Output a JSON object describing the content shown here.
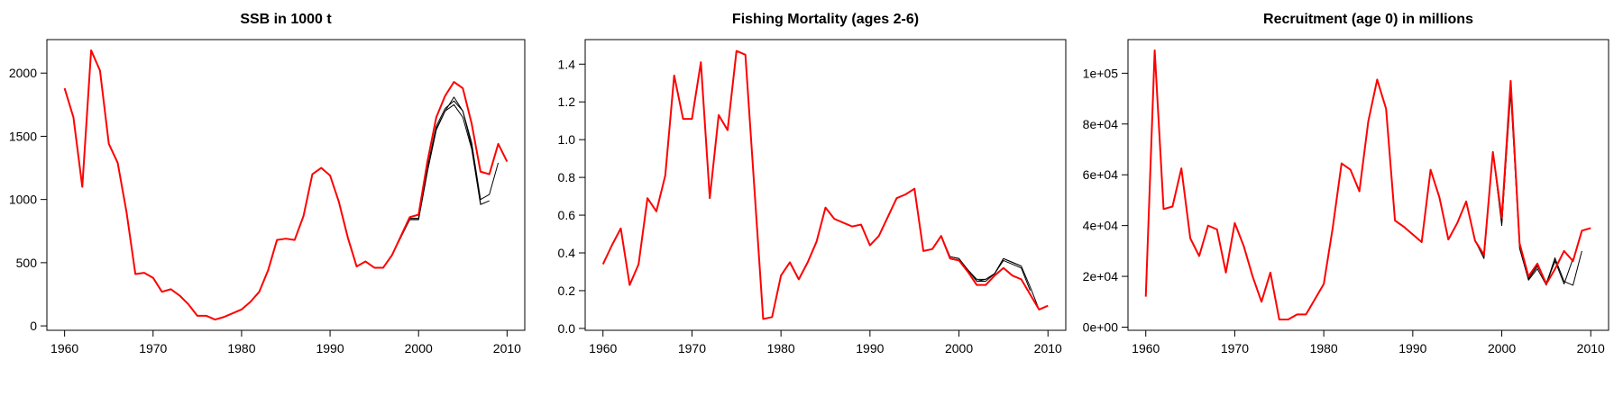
{
  "chart_data": [
    {
      "type": "line",
      "title": "SSB in 1000 t",
      "x": [
        1960,
        1961,
        1962,
        1963,
        1964,
        1965,
        1966,
        1967,
        1968,
        1969,
        1970,
        1971,
        1972,
        1973,
        1974,
        1975,
        1976,
        1977,
        1978,
        1979,
        1980,
        1981,
        1982,
        1983,
        1984,
        1985,
        1986,
        1987,
        1988,
        1989,
        1990,
        1991,
        1992,
        1993,
        1994,
        1995,
        1996,
        1997,
        1998,
        1999,
        2000,
        2001,
        2002,
        2003,
        2004,
        2005,
        2006,
        2007,
        2008,
        2009,
        2010
      ],
      "xlim": [
        1958,
        2012
      ],
      "xticks": [
        1960,
        1970,
        1980,
        1990,
        2000,
        2010
      ],
      "ylim": [
        -35,
        2265
      ],
      "yticks": [
        0,
        500,
        1000,
        1500,
        2000
      ],
      "series": [
        {
          "color": "#000000",
          "values": [
            null,
            null,
            null,
            null,
            null,
            null,
            null,
            null,
            null,
            null,
            null,
            null,
            null,
            null,
            null,
            null,
            null,
            null,
            null,
            null,
            null,
            null,
            null,
            null,
            null,
            null,
            null,
            null,
            null,
            null,
            null,
            null,
            null,
            null,
            null,
            null,
            460,
            560,
            700,
            840,
            840,
            1220,
            1550,
            1700,
            1750,
            1650,
            1400,
            960,
            990,
            null,
            null
          ]
        },
        {
          "color": "#000000",
          "values": [
            null,
            null,
            null,
            null,
            null,
            null,
            null,
            null,
            null,
            null,
            null,
            null,
            null,
            null,
            null,
            null,
            null,
            null,
            null,
            null,
            null,
            null,
            null,
            null,
            null,
            null,
            null,
            null,
            null,
            null,
            null,
            null,
            null,
            null,
            null,
            null,
            460,
            560,
            700,
            850,
            850,
            1240,
            1560,
            1700,
            1810,
            1700,
            1420,
            970,
            null,
            null,
            null
          ]
        },
        {
          "color": "#000000",
          "values": [
            null,
            null,
            null,
            null,
            null,
            null,
            null,
            null,
            null,
            null,
            null,
            null,
            null,
            null,
            null,
            null,
            null,
            null,
            null,
            null,
            null,
            null,
            null,
            null,
            null,
            null,
            null,
            null,
            null,
            null,
            null,
            null,
            null,
            null,
            null,
            null,
            460,
            560,
            710,
            850,
            850,
            1250,
            1580,
            1720,
            1780,
            1700,
            1450,
            1000,
            1040,
            1290,
            null
          ]
        },
        {
          "color": "#ff0000",
          "values": [
            1880,
            1650,
            1100,
            2180,
            2020,
            1440,
            1290,
            900,
            410,
            420,
            380,
            270,
            290,
            240,
            170,
            80,
            80,
            50,
            70,
            100,
            130,
            190,
            270,
            440,
            680,
            690,
            680,
            870,
            1200,
            1250,
            1190,
            980,
            700,
            470,
            510,
            460,
            460,
            560,
            710,
            860,
            880,
            1300,
            1650,
            1820,
            1930,
            1880,
            1600,
            1220,
            1200,
            1440,
            1300
          ]
        }
      ]
    },
    {
      "type": "line",
      "title": "Fishing Mortality (ages 2-6)",
      "x": [
        1960,
        1961,
        1962,
        1963,
        1964,
        1965,
        1966,
        1967,
        1968,
        1969,
        1970,
        1971,
        1972,
        1973,
        1974,
        1975,
        1976,
        1977,
        1978,
        1979,
        1980,
        1981,
        1982,
        1983,
        1984,
        1985,
        1986,
        1987,
        1988,
        1989,
        1990,
        1991,
        1992,
        1993,
        1994,
        1995,
        1996,
        1997,
        1998,
        1999,
        2000,
        2001,
        2002,
        2003,
        2004,
        2005,
        2006,
        2007,
        2008,
        2009,
        2010
      ],
      "xlim": [
        1958,
        2012
      ],
      "xticks": [
        1960,
        1970,
        1980,
        1990,
        2000,
        2010
      ],
      "ylim": [
        -0.01,
        1.53
      ],
      "yticks": [
        {
          "value": 0,
          "label": "0.0"
        },
        0.2,
        0.4,
        0.6,
        0.8,
        {
          "value": 1,
          "label": "1.0"
        },
        1.2,
        1.4
      ],
      "series": [
        {
          "color": "#000000",
          "values": [
            null,
            null,
            null,
            null,
            null,
            null,
            null,
            null,
            null,
            null,
            null,
            null,
            null,
            null,
            null,
            null,
            null,
            null,
            null,
            null,
            null,
            null,
            null,
            null,
            null,
            null,
            null,
            null,
            null,
            null,
            null,
            null,
            null,
            null,
            null,
            null,
            0.41,
            0.42,
            0.49,
            0.38,
            0.37,
            0.31,
            0.25,
            0.26,
            0.29,
            0.37,
            0.35,
            0.33,
            null,
            null,
            null
          ]
        },
        {
          "color": "#000000",
          "values": [
            null,
            null,
            null,
            null,
            null,
            null,
            null,
            null,
            null,
            null,
            null,
            null,
            null,
            null,
            null,
            null,
            null,
            null,
            null,
            null,
            null,
            null,
            null,
            null,
            null,
            null,
            null,
            null,
            null,
            null,
            null,
            null,
            null,
            null,
            null,
            null,
            0.41,
            0.42,
            0.49,
            0.37,
            0.36,
            0.31,
            0.25,
            0.25,
            0.29,
            0.36,
            0.34,
            0.32,
            0.2,
            null,
            null
          ]
        },
        {
          "color": "#000000",
          "values": [
            null,
            null,
            null,
            null,
            null,
            null,
            null,
            null,
            null,
            null,
            null,
            null,
            null,
            null,
            null,
            null,
            null,
            null,
            null,
            null,
            null,
            null,
            null,
            null,
            null,
            null,
            null,
            null,
            null,
            null,
            null,
            null,
            null,
            null,
            null,
            null,
            0.41,
            0.42,
            0.49,
            0.38,
            0.37,
            0.31,
            0.26,
            0.26,
            0.29,
            0.37,
            0.35,
            0.33,
            0.22,
            0.1,
            null
          ]
        },
        {
          "color": "#ff0000",
          "values": [
            0.34,
            0.44,
            0.53,
            0.23,
            0.34,
            0.69,
            0.62,
            0.81,
            1.34,
            1.11,
            1.11,
            1.41,
            0.69,
            1.13,
            1.05,
            1.47,
            1.45,
            0.75,
            0.05,
            0.06,
            0.28,
            0.35,
            0.26,
            0.35,
            0.46,
            0.64,
            0.58,
            0.56,
            0.54,
            0.55,
            0.44,
            0.49,
            0.59,
            0.69,
            0.71,
            0.74,
            0.41,
            0.42,
            0.49,
            0.37,
            0.36,
            0.3,
            0.23,
            0.23,
            0.28,
            0.32,
            0.28,
            0.26,
            0.18,
            0.1,
            0.12
          ]
        }
      ]
    },
    {
      "type": "line",
      "title": "Recruitment (age 0) in millions",
      "x": [
        1960,
        1961,
        1962,
        1963,
        1964,
        1965,
        1966,
        1967,
        1968,
        1969,
        1970,
        1971,
        1972,
        1973,
        1974,
        1975,
        1976,
        1977,
        1978,
        1979,
        1980,
        1981,
        1982,
        1983,
        1984,
        1985,
        1986,
        1987,
        1988,
        1989,
        1990,
        1991,
        1992,
        1993,
        1994,
        1995,
        1996,
        1997,
        1998,
        1999,
        2000,
        2001,
        2002,
        2003,
        2004,
        2005,
        2006,
        2007,
        2008,
        2009,
        2010
      ],
      "xlim": [
        1958,
        2012
      ],
      "xticks": [
        1960,
        1970,
        1980,
        1990,
        2000,
        2010
      ],
      "ylim": [
        -1240,
        113240
      ],
      "yticks": [
        {
          "value": 0,
          "label": "0e+00"
        },
        {
          "value": 20000,
          "label": "2e+04"
        },
        {
          "value": 40000,
          "label": "4e+04"
        },
        {
          "value": 60000,
          "label": "6e+04"
        },
        {
          "value": 80000,
          "label": "8e+04"
        },
        {
          "value": 100000,
          "label": "1e+05"
        }
      ],
      "series": [
        {
          "color": "#000000",
          "values": [
            null,
            null,
            null,
            null,
            null,
            null,
            null,
            null,
            null,
            null,
            null,
            null,
            null,
            null,
            null,
            null,
            null,
            null,
            null,
            null,
            null,
            null,
            null,
            null,
            null,
            null,
            null,
            null,
            null,
            null,
            null,
            null,
            null,
            null,
            null,
            null,
            49500,
            34000,
            27000,
            69000,
            41000,
            92000,
            32000,
            19000,
            24000,
            17500,
            26000,
            17000,
            27000,
            null,
            null
          ]
        },
        {
          "color": "#000000",
          "values": [
            null,
            null,
            null,
            null,
            null,
            null,
            null,
            null,
            null,
            null,
            null,
            null,
            null,
            null,
            null,
            null,
            null,
            null,
            null,
            null,
            null,
            null,
            null,
            null,
            null,
            null,
            null,
            null,
            null,
            null,
            null,
            null,
            null,
            null,
            null,
            null,
            49500,
            34000,
            28000,
            69000,
            42000,
            96000,
            33000,
            19500,
            24500,
            17000,
            27500,
            null,
            null,
            null,
            null
          ]
        },
        {
          "color": "#000000",
          "values": [
            null,
            null,
            null,
            null,
            null,
            null,
            null,
            null,
            null,
            null,
            null,
            null,
            null,
            null,
            null,
            null,
            null,
            null,
            null,
            null,
            null,
            null,
            null,
            null,
            null,
            null,
            null,
            null,
            null,
            null,
            null,
            null,
            null,
            null,
            null,
            null,
            49500,
            34000,
            28000,
            69000,
            40000,
            95000,
            31000,
            18500,
            23000,
            16500,
            27000,
            18000,
            16500,
            30000,
            null
          ]
        },
        {
          "color": "#ff0000",
          "values": [
            12000,
            109000,
            46500,
            47500,
            62500,
            35000,
            28000,
            40000,
            38500,
            21500,
            41000,
            32000,
            20000,
            10000,
            21500,
            3000,
            3000,
            5000,
            5000,
            11000,
            17000,
            39000,
            64500,
            62000,
            53500,
            81000,
            97500,
            86000,
            42000,
            39500,
            36500,
            33500,
            62000,
            51000,
            34500,
            41000,
            49500,
            34000,
            28500,
            69000,
            43000,
            97000,
            33000,
            20000,
            25000,
            17000,
            23000,
            30000,
            26000,
            38000,
            39000
          ]
        }
      ]
    }
  ]
}
